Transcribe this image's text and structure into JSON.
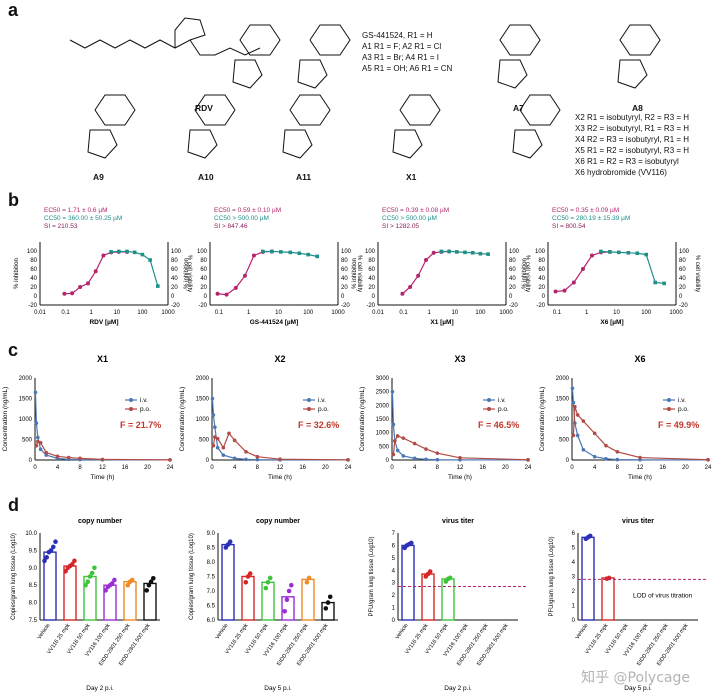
{
  "panel_a": {
    "label": "a",
    "compounds": [
      "RDV",
      "A7",
      "A8",
      "A9",
      "A10",
      "A11",
      "X1"
    ],
    "series_lines": [
      "GS-441524, R1 = H",
      "A1 R1 = F;   A2 R1 = Cl",
      "A3 R1 = Br;  A4 R1 = I",
      "A5 R1 = OH; A6 R1 = CN"
    ],
    "x_lines": [
      "X2 R1 = isobutyryl, R2 = R3 = H",
      "X3 R2 = isobutyryl, R1 = R3 = H",
      "X4 R2 = R3 = isobutyryl, R1 = H",
      "X5 R1 = R2 = isobutyryl, R3 = H",
      "X6 R1 = R2 = R3 = isobutyryl",
      "X6 hydrobromide (VV116)"
    ]
  },
  "panel_b": {
    "label": "b",
    "colors": {
      "inhibition": "#b5246e",
      "viability": "#1f8f8a",
      "si": "#8a1f5a"
    },
    "left_axis_label": "% inhibition",
    "right_axis_label": "% cell viability",
    "charts": [
      {
        "ec50": "EC50 = 1.71 ± 0.6 µM",
        "cc50": "CC50 = 360.00 ± 50.25 µM",
        "si": "SI = 210.53",
        "xlabel": "RDV [µM]",
        "xticks": [
          "0.01",
          "0.1",
          "1",
          "10",
          "100",
          "1000"
        ],
        "xlog": [
          -2,
          3
        ],
        "inh": [
          [
            0.09,
            5
          ],
          [
            0.18,
            6
          ],
          [
            0.37,
            20
          ],
          [
            0.75,
            28
          ],
          [
            1.5,
            55
          ],
          [
            3,
            90
          ],
          [
            6,
            97
          ],
          [
            12,
            98
          ],
          [
            25,
            98
          ]
        ],
        "via": [
          [
            6,
            98
          ],
          [
            12,
            99
          ],
          [
            25,
            99
          ],
          [
            50,
            97
          ],
          [
            100,
            92
          ],
          [
            200,
            80
          ],
          [
            400,
            22
          ]
        ]
      },
      {
        "ec50": "EC50 = 0.59 ± 0.10 µM",
        "cc50": "CC50 > 500.00 µM",
        "si": "SI > 847.46",
        "xlabel": "GS-441524 [µM]",
        "xticks": [
          "0.1",
          "1",
          "10",
          "100",
          "1000"
        ],
        "xlog": [
          -1.3,
          3
        ],
        "inh": [
          [
            0.09,
            5
          ],
          [
            0.18,
            3
          ],
          [
            0.37,
            18
          ],
          [
            0.75,
            45
          ],
          [
            1.5,
            90
          ],
          [
            3,
            98
          ],
          [
            6,
            99
          ]
        ],
        "via": [
          [
            3,
            99
          ],
          [
            6,
            99
          ],
          [
            12,
            98
          ],
          [
            25,
            97
          ],
          [
            50,
            95
          ],
          [
            100,
            92
          ],
          [
            200,
            88
          ]
        ]
      },
      {
        "ec50": "EC50 = 0.39 ± 0.08 µM",
        "cc50": "CC50 > 500.00 µM",
        "si": "SI > 1282.05",
        "xlabel": "X1 [µM]",
        "xticks": [
          "0.01",
          "0.1",
          "1",
          "10",
          "100",
          "1000"
        ],
        "xlog": [
          -2,
          3
        ],
        "inh": [
          [
            0.09,
            5
          ],
          [
            0.18,
            20
          ],
          [
            0.37,
            45
          ],
          [
            0.75,
            80
          ],
          [
            1.5,
            96
          ],
          [
            3,
            98
          ],
          [
            6,
            99
          ]
        ],
        "via": [
          [
            3,
            99
          ],
          [
            6,
            99
          ],
          [
            12,
            98
          ],
          [
            25,
            97
          ],
          [
            50,
            96
          ],
          [
            100,
            94
          ],
          [
            200,
            93
          ]
        ]
      },
      {
        "ec50": "EC50 = 0.35 ± 0.09 µM",
        "cc50": "CC50 = 280.19 ± 15.39 µM",
        "si": "SI = 800.54",
        "xlabel": "X6 [µM]",
        "xticks": [
          "0.1",
          "1",
          "10",
          "100",
          "1000"
        ],
        "xlog": [
          -1.3,
          3
        ],
        "inh": [
          [
            0.09,
            10
          ],
          [
            0.18,
            12
          ],
          [
            0.37,
            30
          ],
          [
            0.75,
            60
          ],
          [
            1.5,
            90
          ],
          [
            3,
            97
          ],
          [
            6,
            98
          ]
        ],
        "via": [
          [
            3,
            99
          ],
          [
            6,
            98
          ],
          [
            12,
            97
          ],
          [
            25,
            96
          ],
          [
            50,
            95
          ],
          [
            100,
            92
          ],
          [
            200,
            30
          ],
          [
            400,
            28
          ]
        ]
      }
    ]
  },
  "panel_c": {
    "label": "c",
    "xlabel": "Time (h)",
    "ylabel": "Concentration (ng/mL)",
    "legend": [
      "i.v.",
      "p.o."
    ],
    "colors": {
      "iv": "#4a78b5",
      "po": "#b24a45",
      "f": "#c0392b"
    },
    "charts": [
      {
        "title": "X1",
        "F": "F = 21.7%",
        "ymax": 2000,
        "ystep": 500,
        "iv": [
          [
            0.08,
            1650
          ],
          [
            0.25,
            900
          ],
          [
            0.5,
            550
          ],
          [
            1,
            260
          ],
          [
            2,
            120
          ],
          [
            4,
            40
          ],
          [
            6,
            15
          ],
          [
            8,
            8
          ],
          [
            12,
            4
          ],
          [
            24,
            2
          ]
        ],
        "po": [
          [
            0.25,
            350
          ],
          [
            0.5,
            450
          ],
          [
            1,
            420
          ],
          [
            2,
            180
          ],
          [
            4,
            90
          ],
          [
            6,
            60
          ],
          [
            8,
            40
          ],
          [
            12,
            15
          ],
          [
            24,
            3
          ]
        ]
      },
      {
        "title": "X2",
        "F": "F = 32.6%",
        "ymax": 2000,
        "ystep": 500,
        "iv": [
          [
            0.08,
            1500
          ],
          [
            0.25,
            1100
          ],
          [
            0.5,
            800
          ],
          [
            1,
            300
          ],
          [
            2,
            120
          ],
          [
            4,
            40
          ],
          [
            6,
            15
          ],
          [
            8,
            8
          ],
          [
            12,
            4
          ],
          [
            24,
            2
          ]
        ],
        "po": [
          [
            0.25,
            350
          ],
          [
            0.5,
            560
          ],
          [
            1,
            520
          ],
          [
            2,
            300
          ],
          [
            3,
            650
          ],
          [
            4,
            480
          ],
          [
            6,
            200
          ],
          [
            8,
            80
          ],
          [
            12,
            20
          ],
          [
            24,
            4
          ]
        ]
      },
      {
        "title": "X3",
        "F": "F = 46.5%",
        "ymax": 3000,
        "ystep": 500,
        "iv": [
          [
            0.08,
            2500
          ],
          [
            0.25,
            1300
          ],
          [
            0.5,
            700
          ],
          [
            1,
            350
          ],
          [
            2,
            150
          ],
          [
            4,
            60
          ],
          [
            6,
            25
          ],
          [
            8,
            10
          ],
          [
            12,
            5
          ],
          [
            24,
            2
          ]
        ],
        "po": [
          [
            0.25,
            200
          ],
          [
            0.5,
            700
          ],
          [
            1,
            880
          ],
          [
            2,
            800
          ],
          [
            4,
            600
          ],
          [
            6,
            400
          ],
          [
            8,
            250
          ],
          [
            12,
            80
          ],
          [
            24,
            10
          ]
        ]
      },
      {
        "title": "X6",
        "F": "F = 49.9%",
        "ymax": 2000,
        "ystep": 500,
        "iv": [
          [
            0.08,
            1750
          ],
          [
            0.25,
            1400
          ],
          [
            0.5,
            900
          ],
          [
            1,
            600
          ],
          [
            2,
            250
          ],
          [
            4,
            80
          ],
          [
            6,
            30
          ],
          [
            8,
            10
          ],
          [
            12,
            5
          ],
          [
            24,
            2
          ]
        ],
        "po": [
          [
            0.25,
            600
          ],
          [
            0.5,
            1300
          ],
          [
            1,
            1100
          ],
          [
            2,
            950
          ],
          [
            4,
            650
          ],
          [
            6,
            350
          ],
          [
            8,
            200
          ],
          [
            12,
            60
          ],
          [
            24,
            8
          ]
        ]
      }
    ]
  },
  "panel_d": {
    "label": "d",
    "charts": [
      {
        "title": "copy number",
        "ylabel": "Copies/gram lung tissue (Log10)",
        "ylim": [
          7.5,
          10.0
        ],
        "ystep": 0.5,
        "footer": "Day 2 p.i.",
        "lod": false,
        "groups": [
          {
            "name": "Vehicle",
            "value": 9.45,
            "color": "#2b2fb5",
            "pts": [
              9.2,
              9.3,
              9.45,
              9.5,
              9.6,
              9.75
            ]
          },
          {
            "name": "VV116 25 mpk",
            "value": 9.05,
            "color": "#d62728",
            "pts": [
              8.9,
              9.0,
              9.05,
              9.1,
              9.2
            ]
          },
          {
            "name": "VV116 50 mpk",
            "value": 8.75,
            "color": "#3ec33a",
            "pts": [
              8.5,
              8.6,
              8.75,
              8.85,
              9.0
            ]
          },
          {
            "name": "VV116 100 mpk",
            "value": 8.5,
            "color": "#9b2fd6",
            "pts": [
              8.35,
              8.45,
              8.5,
              8.55,
              8.65
            ]
          },
          {
            "name": "EIDD-2801 250 mpk",
            "value": 8.6,
            "color": "#f08a24",
            "pts": [
              8.5,
              8.6,
              8.65
            ]
          },
          {
            "name": "EIDD-2801 500 mpk",
            "value": 8.55,
            "color": "#111111",
            "pts": [
              8.35,
              8.5,
              8.6,
              8.7
            ]
          }
        ]
      },
      {
        "title": "copy number",
        "ylabel": "Copies/gram lung tissue (Log10)",
        "ylim": [
          6.0,
          9.0
        ],
        "ystep": 0.5,
        "footer": "Day 5 p.i.",
        "lod": false,
        "groups": [
          {
            "name": "Vehicle",
            "value": 8.6,
            "color": "#2b2fb5",
            "pts": [
              8.5,
              8.6,
              8.7
            ]
          },
          {
            "name": "VV116 25 mpk",
            "value": 7.5,
            "color": "#d62728",
            "pts": [
              7.3,
              7.5,
              7.6
            ]
          },
          {
            "name": "VV116 50 mpk",
            "value": 7.3,
            "color": "#3ec33a",
            "pts": [
              7.1,
              7.3,
              7.45
            ]
          },
          {
            "name": "VV116 100 mpk",
            "value": 6.8,
            "color": "#9b2fd6",
            "pts": [
              6.3,
              6.7,
              7.0,
              7.2
            ]
          },
          {
            "name": "EIDD-2801 250 mpk",
            "value": 7.4,
            "color": "#f08a24",
            "pts": [
              7.3,
              7.45
            ]
          },
          {
            "name": "EIDD-2801 500 mpk",
            "value": 6.6,
            "color": "#111111",
            "pts": [
              6.4,
              6.6,
              6.8
            ]
          }
        ]
      },
      {
        "title": "virus titer",
        "ylabel": "PFU/gram lung tissue (Log10)",
        "ylim": [
          0,
          7
        ],
        "ystep": 1,
        "footer": "Day 2 p.i.",
        "lod": true,
        "lod_value": 2.7,
        "lod_text": "",
        "groups": [
          {
            "name": "Vehicle",
            "value": 6.0,
            "color": "#2b2fb5",
            "pts": [
              5.8,
              6.0,
              6.1,
              6.2
            ]
          },
          {
            "name": "VV116 25 mpk",
            "value": 3.7,
            "color": "#d62728",
            "pts": [
              3.5,
              3.7,
              3.9
            ]
          },
          {
            "name": "VV116 50 mpk",
            "value": 3.3,
            "color": "#3ec33a",
            "pts": [
              3.1,
              3.3,
              3.4
            ]
          },
          {
            "name": "VV116 100 mpk",
            "value": null,
            "color": "#9b2fd6",
            "pts": []
          },
          {
            "name": "EIDD-2801 250 mpk",
            "value": null,
            "color": "#f08a24",
            "pts": []
          },
          {
            "name": "EIDD-2801 500 mpk",
            "value": null,
            "color": "#111111",
            "pts": []
          }
        ]
      },
      {
        "title": "virus titer",
        "ylabel": "PFU/gram lung tissue (Log10)",
        "ylim": [
          0,
          6
        ],
        "ystep": 1,
        "footer": "Day 5 p.i.",
        "lod": true,
        "lod_value": 2.8,
        "lod_text": "LOD of virus titration",
        "groups": [
          {
            "name": "Vehicle",
            "value": 5.7,
            "color": "#2b2fb5",
            "pts": [
              5.6,
              5.7,
              5.8
            ]
          },
          {
            "name": "VV116 25 mpk",
            "value": 2.9,
            "color": "#d62728",
            "pts": [
              2.85,
              2.9
            ]
          },
          {
            "name": "VV116 50 mpk",
            "value": null,
            "color": "#3ec33a",
            "pts": []
          },
          {
            "name": "VV116 100 mpk",
            "value": null,
            "color": "#9b2fd6",
            "pts": []
          },
          {
            "name": "EIDD-2801 250 mpk",
            "value": null,
            "color": "#f08a24",
            "pts": []
          },
          {
            "name": "EIDD-2801 500 mpk",
            "value": null,
            "color": "#111111",
            "pts": []
          }
        ]
      }
    ]
  },
  "watermark": "知乎 @Polycage"
}
